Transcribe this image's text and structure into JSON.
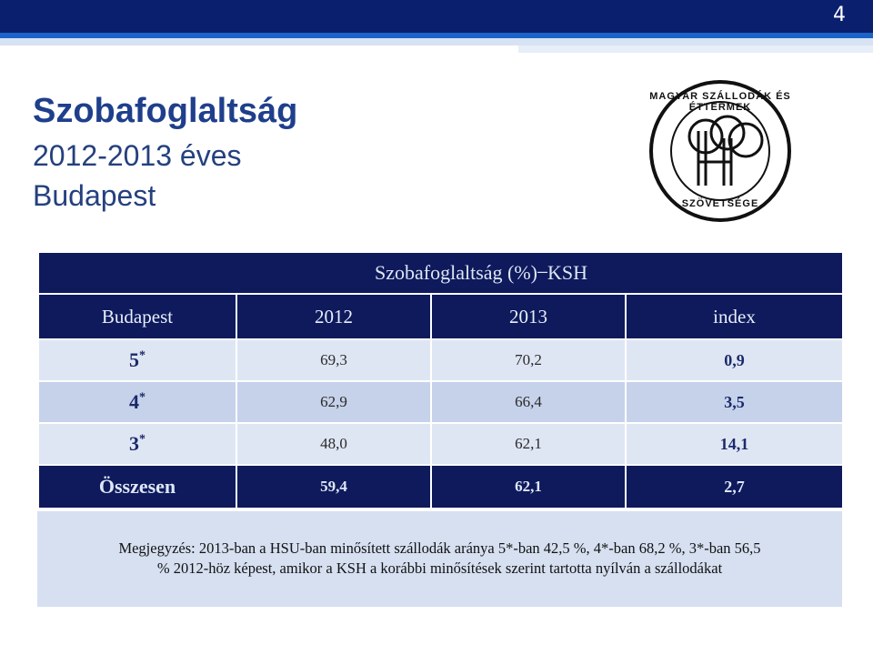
{
  "page": {
    "number": "4"
  },
  "title": "Szobafoglaltság",
  "subtitle_line1": "2012-2013 éves",
  "subtitle_line2": "Budapest",
  "logo": {
    "icon": "hotel-association-logo",
    "text_top": "MAGYAR SZÁLLODÁK ÉS ÉTTERMEK",
    "text_bottom": "SZÖVETSÉGE"
  },
  "table": {
    "caption": "Szobafoglaltság (%)  ̶  KSH",
    "headers": [
      "Budapest",
      "2012",
      "2013",
      "index"
    ],
    "rows": [
      {
        "label": "5",
        "star": "*",
        "v2012": "69,3",
        "v2013": "70,2",
        "index": "0,9"
      },
      {
        "label": "4",
        "star": "*",
        "v2012": "62,9",
        "v2013": "66,4",
        "index": "3,5"
      },
      {
        "label": "3",
        "star": "*",
        "v2012": "48,0",
        "v2013": "62,1",
        "index": "14,1"
      }
    ],
    "total": {
      "label": "Összesen",
      "v2012": "59,4",
      "v2013": "62,1",
      "index": "2,7"
    }
  },
  "note": "Megjegyzés: 2013-ban a HSU-ban minősített szállodák aránya 5*-ban 42,5 %, 4*-ban 68,2 %, 3*-ban 56,5\n% 2012-höz képest, amikor a KSH a korábbi minősítések szerint tartotta nyílván a szállodákat",
  "colors": {
    "header_navy": "#0e1a5c",
    "title_blue": "#1f3f8c",
    "row_light": "#dfe6f3",
    "row_mid": "#c6d2ea"
  }
}
